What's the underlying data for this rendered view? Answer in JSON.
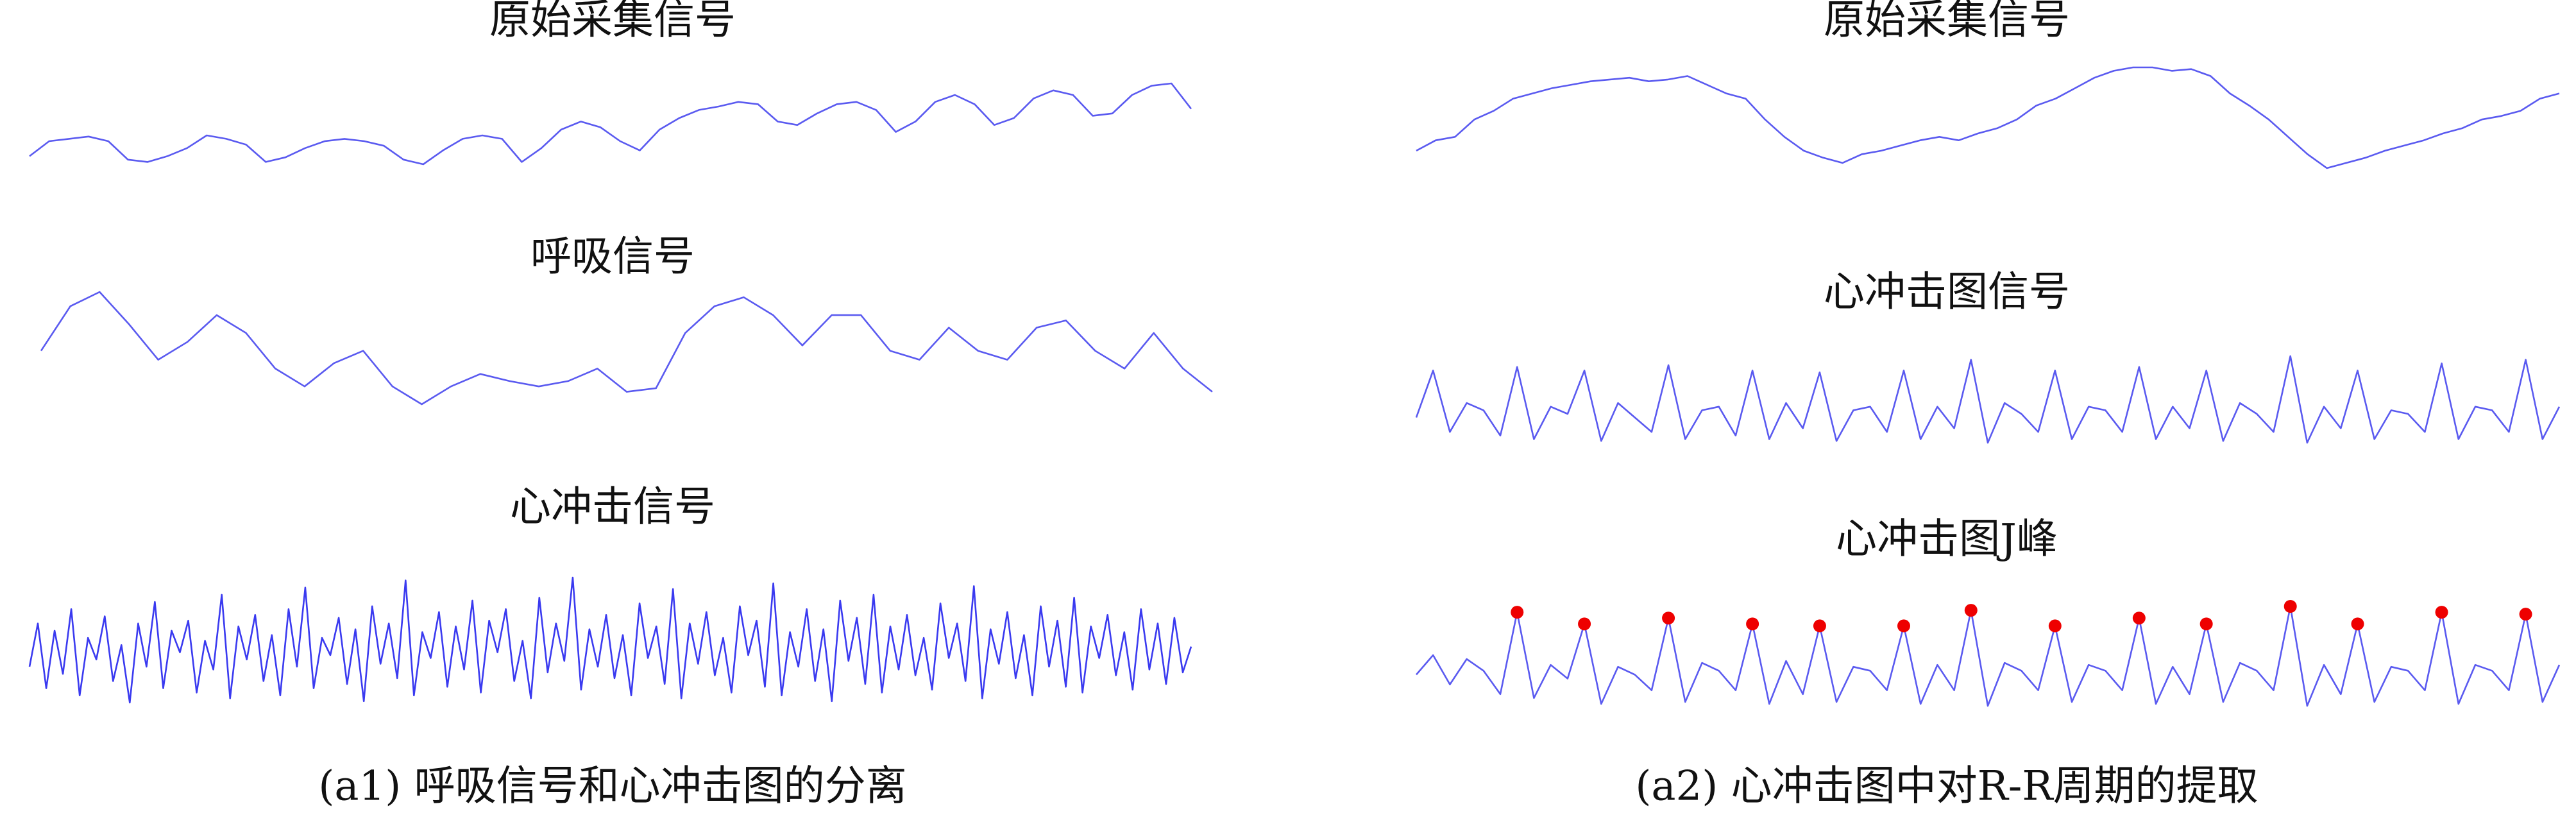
{
  "chart_data": [
    {
      "type": "line",
      "title": "原始采集信号",
      "color": "#5a5af0",
      "values": [
        15,
        28,
        30,
        32,
        28,
        12,
        10,
        15,
        22,
        33,
        30,
        25,
        10,
        14,
        22,
        28,
        30,
        28,
        24,
        12,
        8,
        20,
        30,
        33,
        30,
        10,
        22,
        38,
        45,
        40,
        28,
        20,
        38,
        48,
        55,
        58,
        62,
        60,
        45,
        42,
        52,
        60,
        62,
        55,
        36,
        45,
        62,
        68,
        60,
        42,
        48,
        65,
        72,
        68,
        50,
        52,
        68,
        76,
        78,
        56
      ]
    },
    {
      "type": "line",
      "title": "呼吸信号",
      "color": "#5a5af0",
      "values": [
        35,
        60,
        68,
        50,
        30,
        40,
        55,
        45,
        25,
        15,
        28,
        35,
        15,
        5,
        15,
        22,
        18,
        15,
        18,
        25,
        12,
        14,
        45,
        60,
        65,
        55,
        38,
        55,
        55,
        35,
        30,
        48,
        35,
        30,
        48,
        52,
        35,
        25,
        45,
        25,
        12
      ]
    },
    {
      "type": "line",
      "title": "心冲击信号",
      "color": "#3a3af0",
      "values": [
        30,
        60,
        15,
        55,
        25,
        70,
        10,
        50,
        35,
        65,
        20,
        45,
        5,
        60,
        30,
        75,
        15,
        55,
        40,
        62,
        12,
        48,
        28,
        80,
        8,
        58,
        35,
        66,
        20,
        52,
        10,
        70,
        30,
        85,
        15,
        50,
        38,
        64,
        18,
        56,
        6,
        72,
        32,
        60,
        22,
        90,
        10,
        54,
        36,
        68,
        16,
        58,
        28,
        76,
        12,
        62,
        40,
        70,
        20,
        48,
        8,
        78,
        26,
        60,
        34,
        92,
        14,
        56,
        30,
        66,
        22,
        52,
        10,
        74,
        36,
        58,
        18,
        84,
        8,
        60,
        32,
        68,
        24,
        50,
        12,
        72,
        38,
        62,
        16,
        88,
        10,
        54,
        30,
        70,
        20,
        56,
        6,
        76,
        34,
        64,
        18,
        80,
        12,
        58,
        28,
        66,
        24,
        50,
        14,
        74,
        36,
        60,
        20,
        86,
        8,
        56,
        32,
        68,
        22,
        52,
        10,
        72,
        30,
        62,
        16,
        78,
        12,
        58,
        36,
        66,
        24,
        54,
        14,
        70,
        28,
        60,
        18,
        64,
        26,
        44
      ]
    },
    {
      "type": "line",
      "title": "原始采集信号",
      "color": "#5a5af0",
      "values": [
        22,
        28,
        30,
        40,
        45,
        52,
        55,
        58,
        60,
        62,
        63,
        64,
        62,
        63,
        65,
        60,
        55,
        52,
        40,
        30,
        22,
        18,
        15,
        20,
        22,
        25,
        28,
        30,
        28,
        32,
        35,
        40,
        48,
        52,
        58,
        64,
        68,
        70,
        70,
        68,
        69,
        65,
        55,
        48,
        40,
        30,
        20,
        12,
        15,
        18,
        22,
        25,
        28,
        32,
        35,
        40,
        42,
        45,
        52,
        55
      ]
    },
    {
      "type": "line",
      "title": "心冲击图信号",
      "color": "#5a5af0",
      "values": [
        18,
        44,
        10,
        26,
        22,
        8,
        46,
        6,
        24,
        20,
        44,
        5,
        26,
        18,
        10,
        47,
        6,
        22,
        24,
        8,
        44,
        6,
        26,
        12,
        43,
        5,
        22,
        24,
        10,
        44,
        6,
        24,
        12,
        50,
        4,
        26,
        20,
        10,
        44,
        6,
        24,
        22,
        10,
        46,
        6,
        24,
        12,
        44,
        5,
        26,
        20,
        10,
        52,
        4,
        24,
        12,
        44,
        6,
        22,
        20,
        10,
        48,
        6,
        24,
        22,
        10,
        50,
        6,
        24
      ]
    },
    {
      "type": "line",
      "title": "心冲击图J峰",
      "color": "#5a5af0",
      "values": [
        20,
        30,
        15,
        28,
        22,
        10,
        52,
        8,
        25,
        18,
        46,
        5,
        24,
        20,
        12,
        49,
        6,
        26,
        22,
        12,
        46,
        5,
        27,
        10,
        45,
        6,
        24,
        22,
        12,
        45,
        5,
        25,
        12,
        53,
        4,
        26,
        22,
        12,
        45,
        6,
        25,
        22,
        12,
        49,
        5,
        24,
        10,
        46,
        6,
        26,
        22,
        12,
        55,
        4,
        25,
        10,
        46,
        6,
        24,
        22,
        12,
        52,
        5,
        25,
        22,
        12,
        51,
        6,
        25
      ],
      "peaks": {
        "color": "#ee0000",
        "x": [
          6,
          10,
          15,
          20,
          24,
          29,
          33,
          38,
          43,
          47,
          52,
          56,
          61,
          66
        ],
        "values": [
          52,
          46,
          49,
          46,
          45,
          45,
          53,
          45,
          49,
          46,
          55,
          46,
          52,
          51
        ]
      }
    }
  ],
  "figure_captions": [
    "(a1) 呼吸信号和心冲击图的分离",
    "(a2) 心冲击图中对R-R周期的提取"
  ]
}
